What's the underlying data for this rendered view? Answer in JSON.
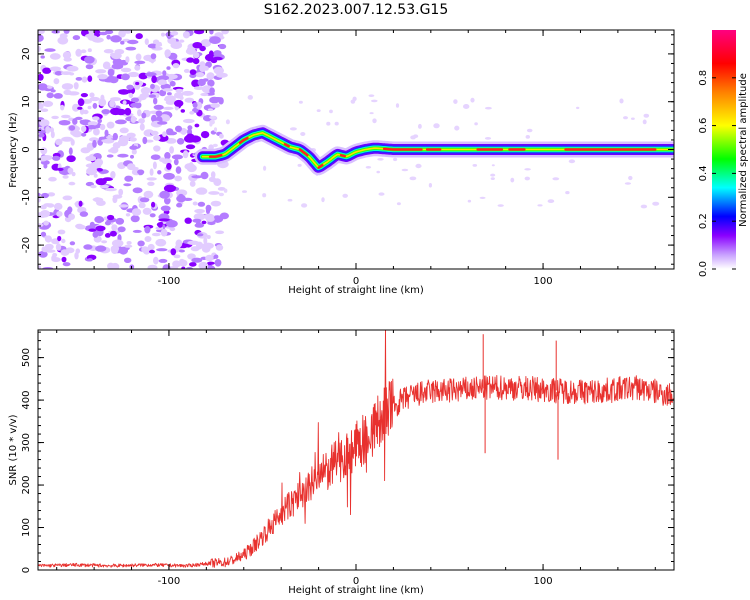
{
  "figure": {
    "title": "S162.2023.007.12.53.G15"
  },
  "chart_data": [
    {
      "type": "heatmap",
      "title": "S162.2023.007.12.53.G15",
      "xlabel": "Height of straight line (km)",
      "ylabel": "Frequency (Hz)",
      "xlim": [
        -170,
        170
      ],
      "ylim": [
        -25,
        25
      ],
      "x_ticks": [
        -100,
        0,
        100
      ],
      "x_tick_labels": [
        "-100",
        "0",
        "100"
      ],
      "y_ticks": [
        -20,
        -10,
        0,
        10,
        20
      ],
      "y_tick_labels": [
        "-20",
        "-10",
        "0",
        "10",
        "20"
      ],
      "grid": false,
      "colorbar": {
        "label": "Normalized spectral amplitude",
        "range": [
          0,
          1
        ],
        "ticks": [
          0.0,
          0.2,
          0.4,
          0.6,
          0.8
        ],
        "tick_labels": [
          "0.0",
          "0.2",
          "0.4",
          "0.6",
          "0.8"
        ],
        "colors": [
          "#ffffff",
          "#8a00ff",
          "#0000ff",
          "#00ffff",
          "#00ff00",
          "#ffff00",
          "#ff8000",
          "#ff0000",
          "#ff0080"
        ]
      },
      "noise_region_x": [
        -170,
        -78
      ],
      "ridge": {
        "x": [
          -82,
          -75,
          -70,
          -65,
          -60,
          -55,
          -50,
          -45,
          -40,
          -35,
          -30,
          -25,
          -20,
          -15,
          -10,
          -5,
          0,
          5,
          10,
          20,
          40,
          60,
          80,
          100,
          110,
          130,
          150,
          170
        ],
        "freq": [
          -1.5,
          -1.5,
          -1.0,
          0.5,
          2.0,
          3.0,
          3.5,
          2.5,
          1.5,
          0.5,
          0.0,
          -1.5,
          -3.8,
          -2.5,
          -1.0,
          -1.5,
          -0.5,
          0.0,
          0.3,
          0.0,
          0.0,
          0.0,
          0.0,
          0.0,
          0.0,
          0.0,
          0.0,
          0.0
        ]
      }
    },
    {
      "type": "line",
      "xlabel": "Height of straight line (km)",
      "ylabel": "SNR (10 * v/v)",
      "xlim": [
        -170,
        170
      ],
      "ylim": [
        0,
        565
      ],
      "x_ticks": [
        -100,
        0,
        100
      ],
      "x_tick_labels": [
        "-100",
        "0",
        "100"
      ],
      "y_ticks": [
        0,
        100,
        200,
        300,
        400,
        500
      ],
      "y_tick_labels": [
        "0",
        "100",
        "200",
        "300",
        "400",
        "500"
      ],
      "grid": false,
      "color": "#e8312e",
      "series": [
        {
          "x": [
            -170,
            -150,
            -130,
            -110,
            -90,
            -80,
            -70,
            -65,
            -60,
            -55,
            -50,
            -45,
            -40,
            -35,
            -30,
            -25,
            -20,
            -15,
            -10,
            -5,
            0,
            5,
            10,
            15,
            20,
            25,
            30,
            40,
            50,
            60,
            70,
            80,
            90,
            100,
            110,
            120,
            130,
            140,
            150,
            160,
            170
          ],
          "values": [
            10,
            12,
            10,
            12,
            10,
            15,
            18,
            25,
            35,
            55,
            80,
            105,
            130,
            155,
            175,
            195,
            215,
            235,
            255,
            275,
            290,
            310,
            335,
            365,
            385,
            400,
            410,
            420,
            422,
            425,
            428,
            430,
            428,
            425,
            422,
            420,
            420,
            425,
            430,
            420,
            410
          ]
        }
      ],
      "spikes": [
        {
          "x": 68,
          "value": 555
        },
        {
          "x": 69,
          "value": 275
        },
        {
          "x": 107,
          "value": 540
        },
        {
          "x": 108,
          "value": 260
        }
      ]
    }
  ]
}
